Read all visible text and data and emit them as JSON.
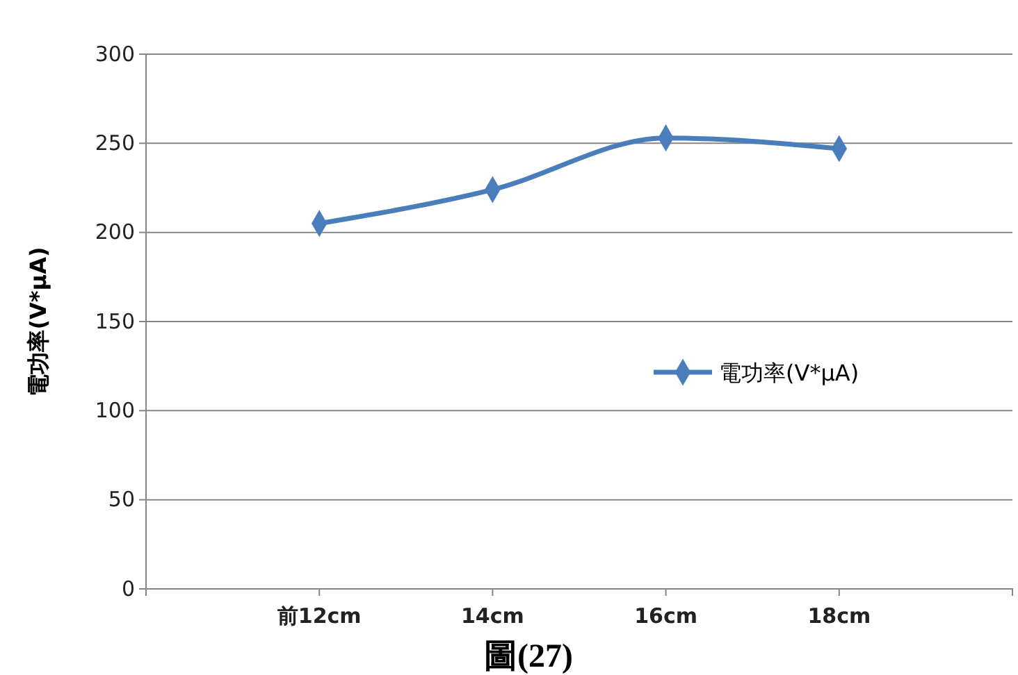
{
  "chart_data": {
    "type": "line",
    "title": "圖(27)",
    "ylabel": "電功率(V*µA)",
    "categories": [
      null,
      "前12cm",
      "14cm",
      "16cm",
      "18cm",
      null
    ],
    "series": [
      {
        "name": "電功率(V*µA)",
        "color": "#4a7ebb",
        "values": [
          null,
          205,
          224,
          253,
          247,
          null
        ]
      }
    ],
    "ylim": [
      0,
      300
    ],
    "yticks": [
      0,
      50,
      100,
      150,
      200,
      250,
      300
    ],
    "grid": "y",
    "legend": "right",
    "marker": "diamond",
    "line_style": "solid"
  }
}
